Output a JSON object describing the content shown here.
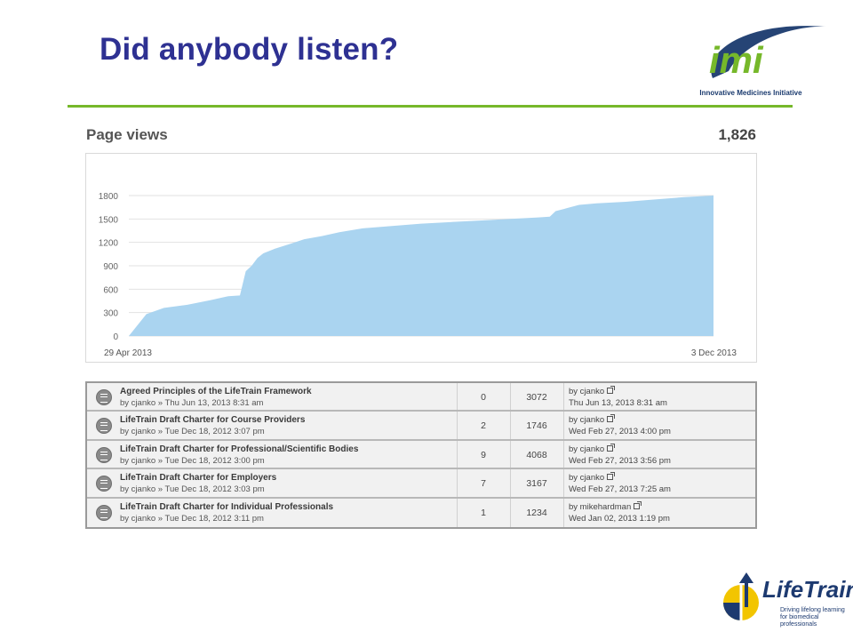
{
  "slide": {
    "title": "Did anybody listen?",
    "imi_logo_text": "imi",
    "imi_tagline": "Innovative Medicines Initiative",
    "lifetrain_name": "LifeTrain",
    "lifetrain_tagline_1": "Driving lifelong learning",
    "lifetrain_tagline_2": "for biomedical professionals"
  },
  "page_views": {
    "label": "Page views",
    "total": "1,826"
  },
  "chart_data": {
    "type": "area",
    "title": "Page views",
    "x_start_label": "29 Apr 2013",
    "x_end_label": "3 Dec 2013",
    "y_ticks": [
      "1800",
      "1500",
      "1200",
      "900",
      "600",
      "300",
      "0"
    ],
    "ylim": [
      0,
      1800
    ],
    "grid": true,
    "x": [
      0,
      0.03,
      0.06,
      0.1,
      0.14,
      0.17,
      0.19,
      0.2,
      0.21,
      0.22,
      0.23,
      0.25,
      0.28,
      0.3,
      0.33,
      0.36,
      0.4,
      0.45,
      0.5,
      0.55,
      0.6,
      0.65,
      0.7,
      0.72,
      0.73,
      0.75,
      0.77,
      0.8,
      0.85,
      0.9,
      0.95,
      1.0
    ],
    "values": [
      0,
      280,
      360,
      400,
      460,
      510,
      520,
      830,
      900,
      1000,
      1060,
      1120,
      1190,
      1240,
      1280,
      1330,
      1380,
      1410,
      1440,
      1460,
      1480,
      1500,
      1520,
      1530,
      1600,
      1640,
      1680,
      1700,
      1720,
      1750,
      1780,
      1800
    ],
    "colors": {
      "fill": "#aad4f0",
      "grid": "#e2e2e2"
    }
  },
  "topics": [
    {
      "title": "Agreed Principles of the LifeTrain Framework",
      "meta": "by cjanko » Thu Jun 13, 2013 8:31 am",
      "replies": "0",
      "views": "3072",
      "last_by": "by cjanko",
      "last_date": "Thu Jun 13, 2013 8:31 am"
    },
    {
      "title": "LifeTrain Draft Charter for Course Providers",
      "meta": "by cjanko » Tue Dec 18, 2012 3:07 pm",
      "replies": "2",
      "views": "1746",
      "last_by": "by cjanko",
      "last_date": "Wed Feb 27, 2013 4:00 pm"
    },
    {
      "title": "LifeTrain Draft Charter for Professional/Scientific Bodies",
      "meta": "by cjanko » Tue Dec 18, 2012 3:00 pm",
      "replies": "9",
      "views": "4068",
      "last_by": "by cjanko",
      "last_date": "Wed Feb 27, 2013 3:56 pm"
    },
    {
      "title": "LifeTrain Draft Charter for Employers",
      "meta": "by cjanko » Tue Dec 18, 2012 3:03 pm",
      "replies": "7",
      "views": "3167",
      "last_by": "by cjanko",
      "last_date": "Wed Feb 27, 2013 7:25 am"
    },
    {
      "title": "LifeTrain Draft Charter for Individual Professionals",
      "meta": "by cjanko » Tue Dec 18, 2012 3:11 pm",
      "replies": "1",
      "views": "1234",
      "last_by": "by mikehardman",
      "last_date": "Wed Jan 02, 2013 1:19 pm"
    }
  ]
}
